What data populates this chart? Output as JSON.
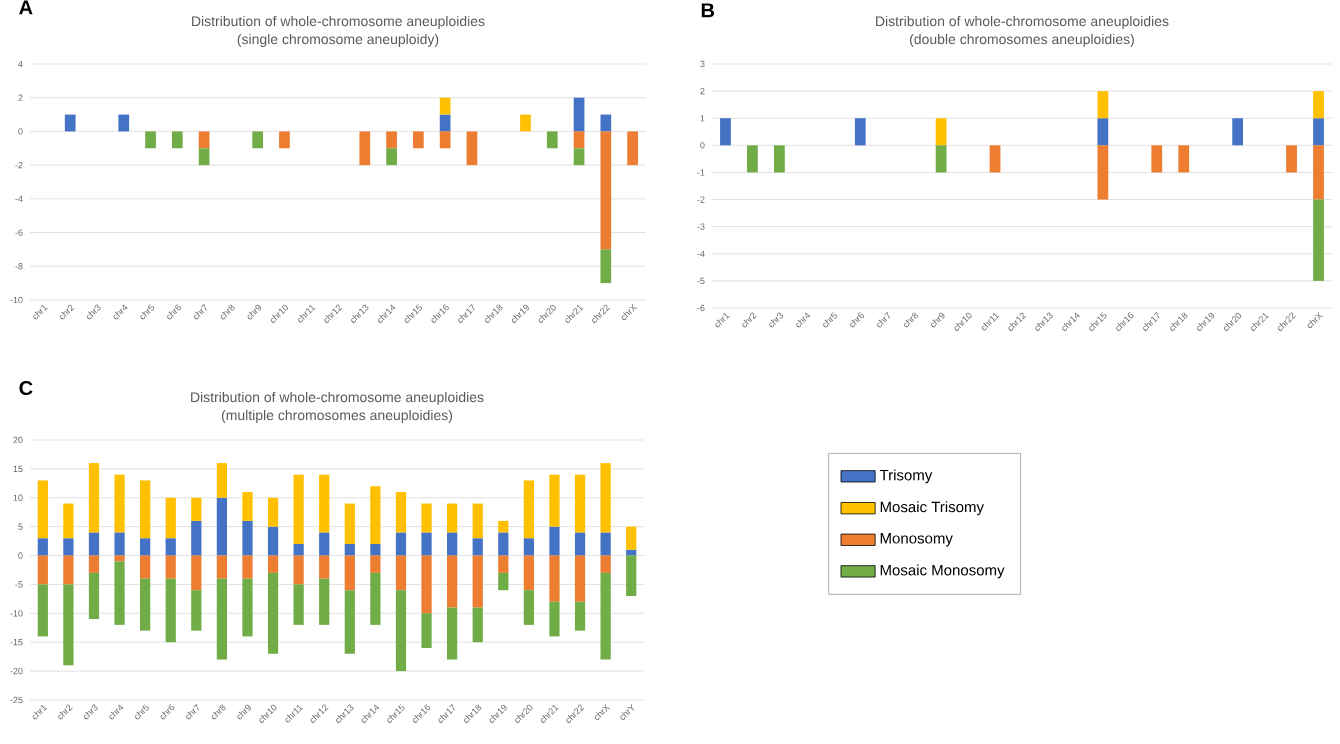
{
  "chart_data": [
    {
      "type": "bar",
      "stacked": true,
      "title": "Distribution of whole-chromosome aneuploidies",
      "subtitle": "(single chromosome aneuploidy)",
      "annotations": [
        "A"
      ],
      "categories": [
        "chr1",
        "chr2",
        "chr3",
        "chr4",
        "chr5",
        "chr6",
        "chr7",
        "chr8",
        "chr9",
        "chr10",
        "chr11",
        "chr12",
        "chr13",
        "chr14",
        "chr15",
        "chr16",
        "chr17",
        "chr18",
        "chr19",
        "chr20",
        "chr21",
        "chr22",
        "chrX"
      ],
      "series": [
        {
          "color": "#4472c4",
          "values": [
            0,
            1,
            0,
            1,
            0,
            0,
            0,
            0,
            0,
            0,
            0,
            0,
            0,
            0,
            0,
            1,
            0,
            0,
            0,
            0,
            2,
            1,
            0
          ]
        },
        {
          "color": "#ffc000",
          "values": [
            0,
            0,
            0,
            0,
            0,
            0,
            0,
            0,
            0,
            0,
            0,
            0,
            0,
            0,
            0,
            1,
            0,
            0,
            1,
            0,
            0,
            0,
            0
          ]
        },
        {
          "color": "#ed7d31",
          "values": [
            0,
            0,
            0,
            0,
            0,
            0,
            -1,
            0,
            0,
            -1,
            0,
            0,
            -2,
            -1,
            -1,
            -1,
            -2,
            0,
            0,
            0,
            -1,
            -7,
            -2
          ]
        },
        {
          "color": "#70ad47",
          "values": [
            0,
            0,
            0,
            0,
            -1,
            -1,
            -1,
            0,
            -1,
            0,
            0,
            0,
            0,
            -1,
            0,
            0,
            0,
            0,
            0,
            -1,
            -1,
            -2,
            0
          ]
        }
      ],
      "ylim": [
        -10,
        4
      ],
      "yticks": [
        -10,
        -8,
        -6,
        -4,
        -2,
        0,
        2,
        4
      ],
      "grid": "y"
    },
    {
      "type": "bar",
      "stacked": true,
      "title": "Distribution of whole-chromosome aneuploidies",
      "subtitle": "(double chromosomes aneuploidies)",
      "annotations": [
        "B"
      ],
      "categories": [
        "chr1",
        "chr2",
        "chr3",
        "chr4",
        "chr5",
        "chr6",
        "chr7",
        "chr8",
        "chr9",
        "chr10",
        "chr11",
        "chr12",
        "chr13",
        "chr14",
        "chr15",
        "chr16",
        "chr17",
        "chr18",
        "chr19",
        "chr20",
        "chr21",
        "chr22",
        "chrX"
      ],
      "series": [
        {
          "color": "#4472c4",
          "values": [
            1,
            0,
            0,
            0,
            0,
            1,
            0,
            0,
            0,
            0,
            0,
            0,
            0,
            0,
            1,
            0,
            0,
            0,
            0,
            1,
            0,
            0,
            1
          ]
        },
        {
          "color": "#ffc000",
          "values": [
            0,
            0,
            0,
            0,
            0,
            0,
            0,
            0,
            1,
            0,
            0,
            0,
            0,
            0,
            1,
            0,
            0,
            0,
            0,
            0,
            0,
            0,
            1
          ]
        },
        {
          "color": "#ed7d31",
          "values": [
            0,
            0,
            0,
            0,
            0,
            0,
            0,
            0,
            0,
            0,
            -1,
            0,
            0,
            0,
            -2,
            0,
            -1,
            -1,
            0,
            0,
            0,
            -1,
            -2
          ]
        },
        {
          "color": "#70ad47",
          "values": [
            0,
            -1,
            -1,
            0,
            0,
            0,
            0,
            0,
            -1,
            0,
            0,
            0,
            0,
            0,
            0,
            0,
            0,
            0,
            0,
            0,
            0,
            0,
            -3
          ]
        }
      ],
      "ylim": [
        -6,
        3
      ],
      "yticks": [
        -6,
        -5,
        -4,
        -3,
        -2,
        -1,
        0,
        1,
        2,
        3
      ],
      "grid": "y"
    },
    {
      "type": "bar",
      "stacked": true,
      "title": "Distribution of whole-chromosome aneuploidies",
      "subtitle": "(multiple chromosomes aneuploidies)",
      "annotations": [
        "C"
      ],
      "categories": [
        "chr1",
        "chr2",
        "chr3",
        "chr4",
        "chr5",
        "chr6",
        "chr7",
        "chr8",
        "chr9",
        "chr10",
        "chr11",
        "chr12",
        "chr13",
        "chr14",
        "chr15",
        "chr16",
        "chr17",
        "chr18",
        "chr19",
        "chr20",
        "chr21",
        "chr22",
        "chrX",
        "chrY"
      ],
      "series": [
        {
          "name": "Trisomy",
          "color": "#4472c4",
          "values": [
            3,
            3,
            4,
            4,
            3,
            3,
            6,
            10,
            6,
            5,
            2,
            4,
            2,
            2,
            4,
            4,
            4,
            3,
            4,
            3,
            5,
            4,
            4,
            1
          ]
        },
        {
          "name": "Mosaic Trisomy",
          "color": "#ffc000",
          "values": [
            10,
            6,
            12,
            10,
            10,
            7,
            4,
            6,
            5,
            5,
            12,
            10,
            7,
            10,
            7,
            5,
            5,
            6,
            2,
            10,
            9,
            10,
            12,
            4
          ]
        },
        {
          "name": "Monosomy",
          "color": "#ed7d31",
          "values": [
            -5,
            -5,
            -3,
            -1,
            -4,
            -4,
            -6,
            -4,
            -4,
            -3,
            -5,
            -4,
            -6,
            -3,
            -6,
            -10,
            -9,
            -9,
            -3,
            -6,
            -8,
            -8,
            -3,
            0
          ]
        },
        {
          "name": "Mosaic Monosomy",
          "color": "#70ad47",
          "values": [
            -9,
            -14,
            -8,
            -11,
            -9,
            -11,
            -7,
            -14,
            -10,
            -14,
            -7,
            -8,
            -11,
            -9,
            -14,
            -6,
            -9,
            -6,
            -3,
            -6,
            -6,
            -5,
            -15,
            -7
          ]
        }
      ],
      "ylim": [
        -25,
        20
      ],
      "yticks": [
        -25,
        -20,
        -15,
        -10,
        -5,
        0,
        5,
        10,
        15,
        20
      ],
      "grid": "y",
      "legend": "right"
    }
  ]
}
